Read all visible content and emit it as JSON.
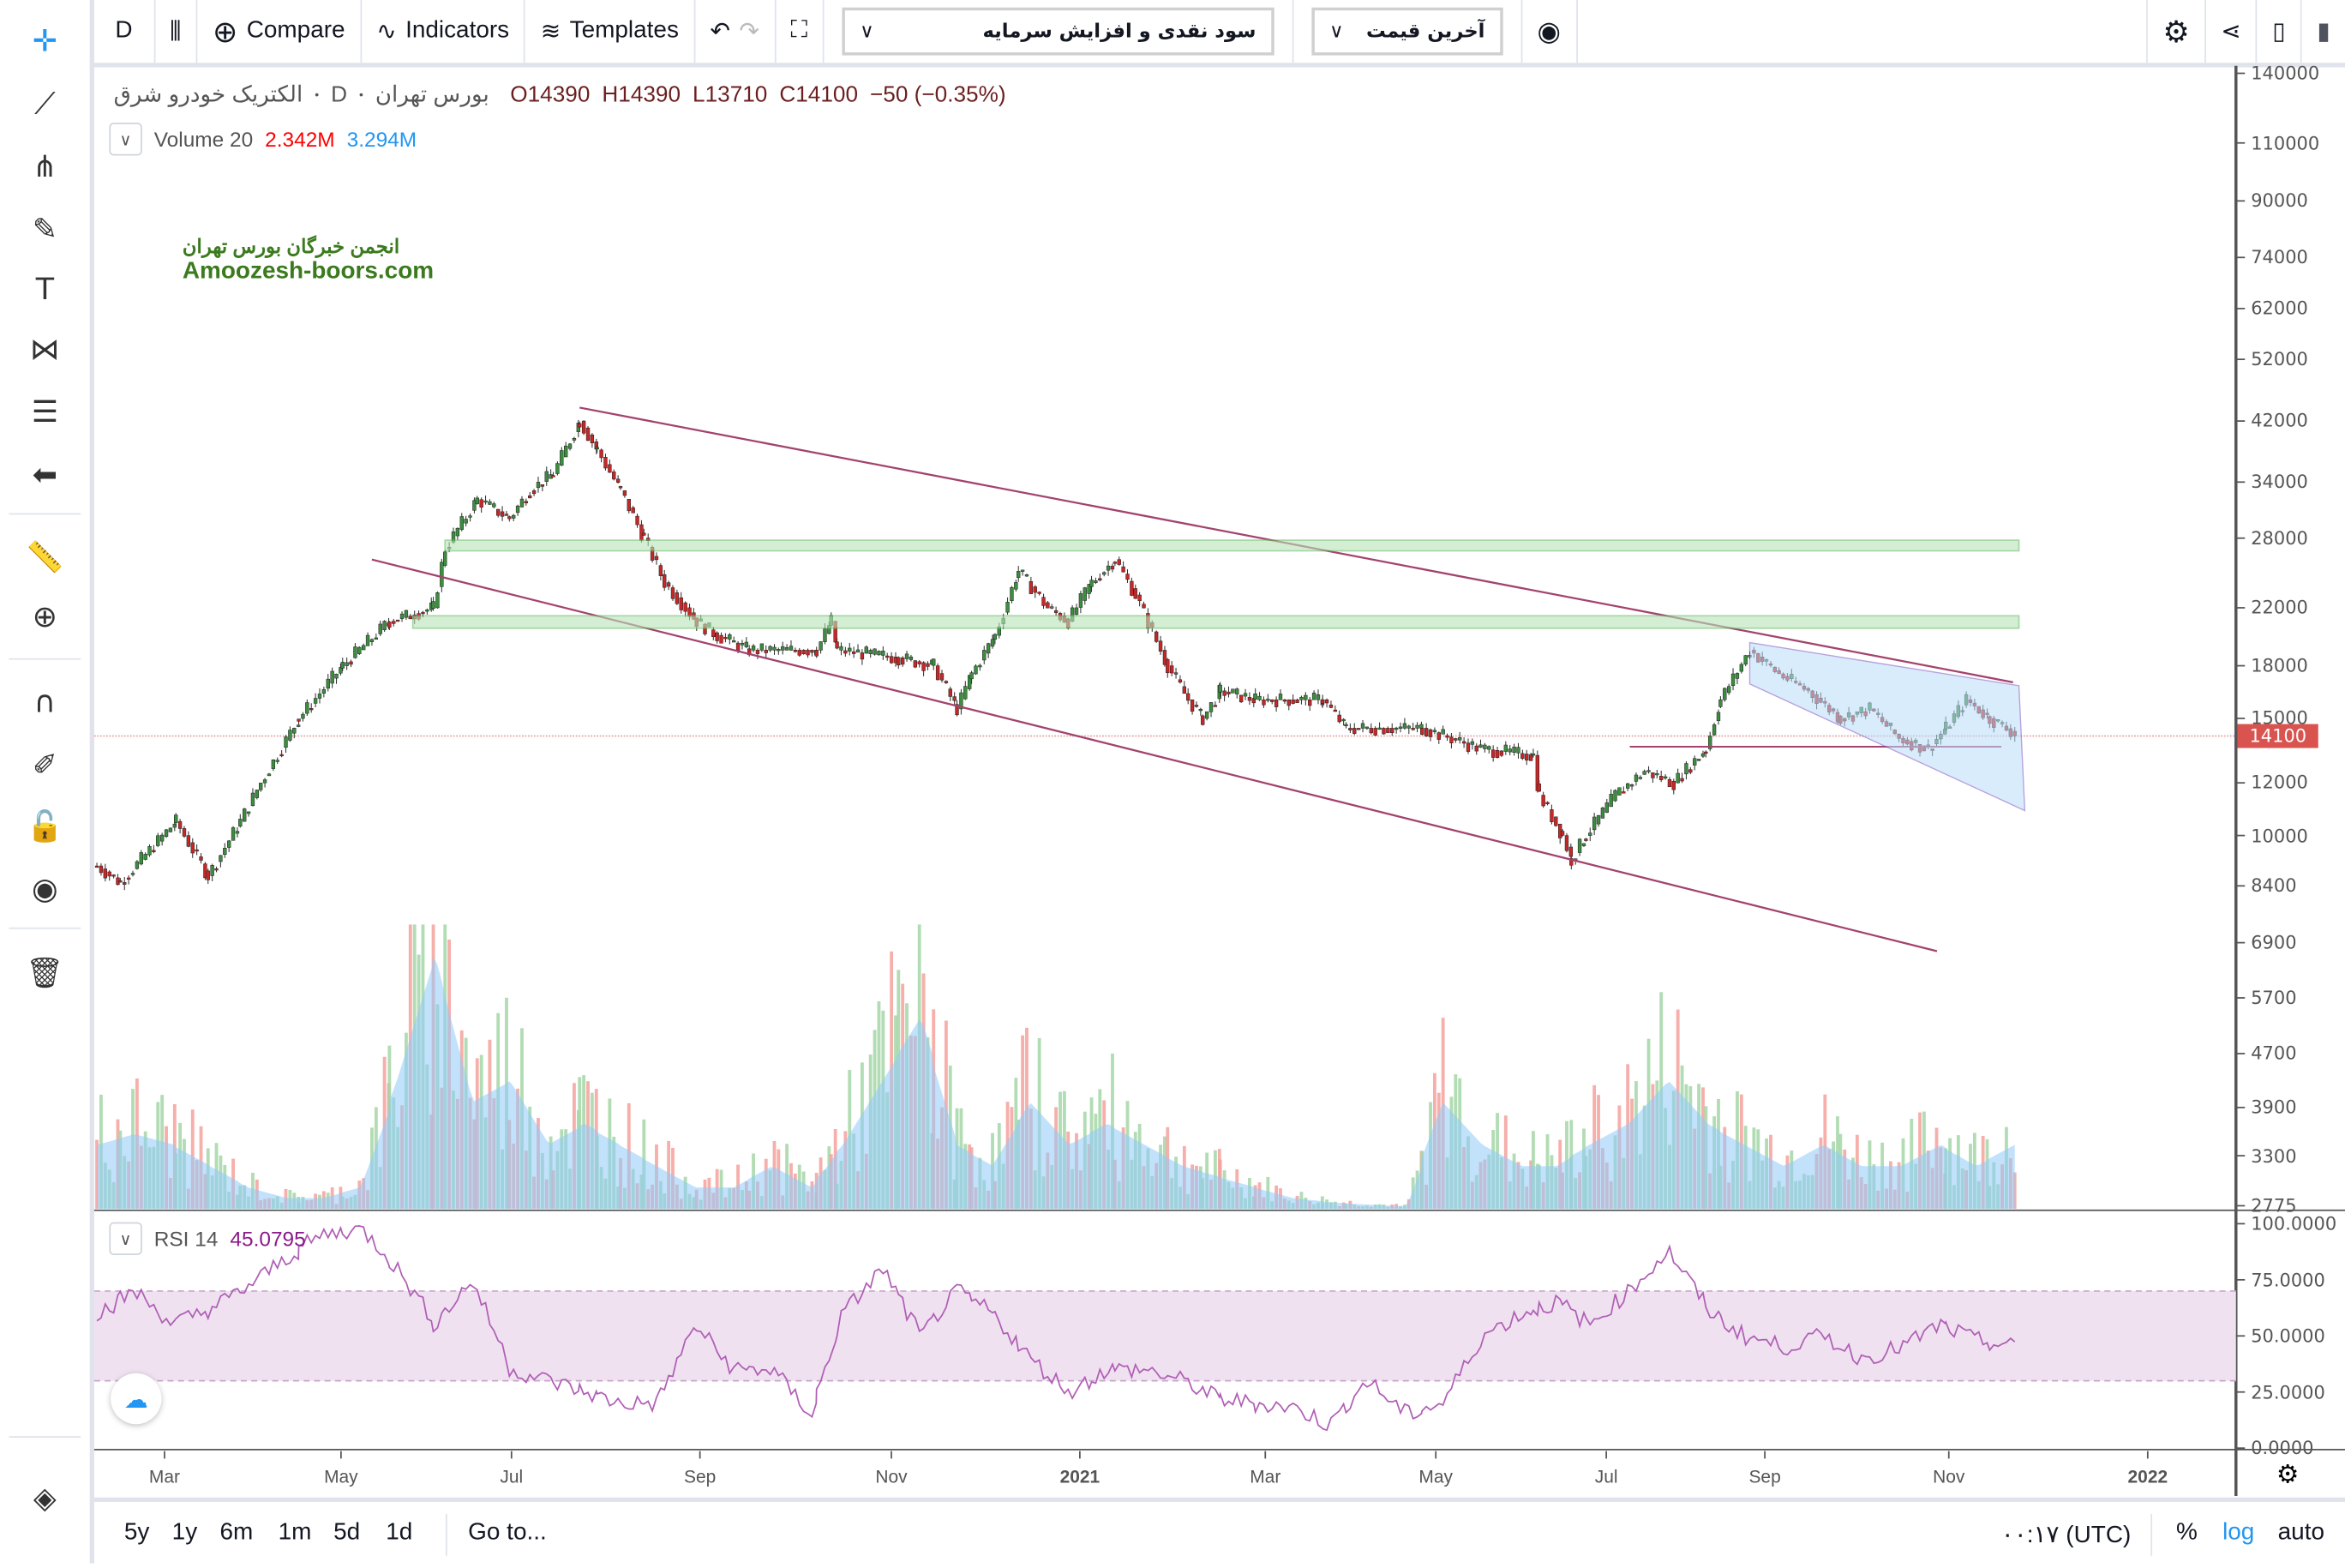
{
  "toolbar": {
    "interval": "D",
    "compare": "Compare",
    "indicators": "Indicators",
    "templates": "Templates",
    "dropdown_dividend": "سود نقدی و افزایش سرمایه",
    "dropdown_price": "آخرین قیمت"
  },
  "left_tools": [
    "crosshair-icon",
    "trendline-icon",
    "pitchfork-icon",
    "brush-icon",
    "text-icon",
    "pattern-icon",
    "fib-icon",
    "back-arrow-icon",
    "ruler-icon",
    "zoom-in-icon",
    "magnet-icon",
    "lock-pencil-icon",
    "unlock-icon",
    "eye-icon",
    "trash-icon",
    "layers-icon"
  ],
  "legend": {
    "symbol": "الکتریک خودرو شرق",
    "interval": "D",
    "exchange": "بورس تهران",
    "open": "O14390",
    "high": "H14390",
    "low": "L13710",
    "close": "C14100",
    "change": "−50 (−0.35%)"
  },
  "volume_legend": {
    "label": "Volume 20",
    "value": "2.342M",
    "ma": "3.294M"
  },
  "rsi_legend": {
    "label": "RSI 14",
    "value": "45.0795"
  },
  "watermark": {
    "line1": "انجمن خبرگان بورس تهران",
    "line2": "Amoozesh-boors.com"
  },
  "colors": {
    "up": "#3c8d40",
    "down": "#c62828",
    "volume_up": "#a5d6a7",
    "volume_down": "#f4a19b",
    "volume_ma": "#90caf9",
    "rsi": "#b05fb5",
    "trendline": "#a3436d",
    "zone": "#b9e3b9",
    "last_price": "#d9534f",
    "accent": "#2196f3"
  },
  "price_axis": {
    "ticks": [
      "140000",
      "110000",
      "90000",
      "74000",
      "62000",
      "52000",
      "42000",
      "34000",
      "28000",
      "22000",
      "18000",
      "15000",
      "12000",
      "10000",
      "8400",
      "6900",
      "5700",
      "4700",
      "3900",
      "3300",
      "2775"
    ],
    "last_price": "14100"
  },
  "rsi_axis": {
    "ticks": [
      "100.0000",
      "75.0000",
      "50.0000",
      "25.0000",
      "0.0000"
    ]
  },
  "time_axis": {
    "ticks": [
      "Mar",
      "May",
      "Jul",
      "Sep",
      "Nov",
      "2021",
      "Mar",
      "May",
      "Jul",
      "Sep",
      "Nov",
      "2022"
    ]
  },
  "bottom": {
    "ranges": [
      "5y",
      "1y",
      "6m",
      "1m",
      "5d",
      "1d"
    ],
    "goto": "Go to...",
    "timezone": "۰۰:۱۷ (UTC)",
    "percent": "%",
    "log": "log",
    "auto": "auto"
  },
  "chart_data": {
    "type": "candlestick",
    "scale": "log",
    "ylim": [
      2775,
      140000
    ],
    "xlim": [
      "2020-01-28",
      "2022-02-20"
    ],
    "price_path": [
      [
        "2020-01-31",
        9000
      ],
      [
        "2020-02-08",
        8500
      ],
      [
        "2020-02-18",
        9500
      ],
      [
        "2020-02-27",
        10500
      ],
      [
        "2020-03-09",
        8700
      ],
      [
        "2020-03-20",
        10500
      ],
      [
        "2020-03-27",
        12000
      ],
      [
        "2020-04-09",
        15000
      ],
      [
        "2020-04-24",
        18000
      ],
      [
        "2020-05-10",
        21000
      ],
      [
        "2020-05-25",
        22000
      ],
      [
        "2020-05-29",
        27000
      ],
      [
        "2020-06-09",
        32000
      ],
      [
        "2020-06-20",
        30000
      ],
      [
        "2020-06-27",
        33000
      ],
      [
        "2020-07-05",
        35000
      ],
      [
        "2020-07-14",
        42000
      ],
      [
        "2020-07-20",
        38000
      ],
      [
        "2020-07-28",
        33000
      ],
      [
        "2020-08-05",
        28000
      ],
      [
        "2020-08-12",
        24000
      ],
      [
        "2020-08-23",
        21000
      ],
      [
        "2020-08-30",
        20000
      ],
      [
        "2020-09-10",
        19000
      ],
      [
        "2020-09-20",
        19000
      ],
      [
        "2020-10-03",
        19000
      ],
      [
        "2020-10-08",
        21000
      ],
      [
        "2020-10-10",
        19000
      ],
      [
        "2020-10-31",
        18500
      ],
      [
        "2020-11-12",
        18000
      ],
      [
        "2020-11-20",
        15500
      ],
      [
        "2020-11-25",
        17500
      ],
      [
        "2020-12-03",
        20000
      ],
      [
        "2020-12-11",
        25000
      ],
      [
        "2020-12-21",
        22000
      ],
      [
        "2020-12-28",
        21000
      ],
      [
        "2021-01-05",
        24000
      ],
      [
        "2021-01-13",
        26000
      ],
      [
        "2021-01-20",
        23000
      ],
      [
        "2021-01-31",
        18000
      ],
      [
        "2021-02-07",
        16000
      ],
      [
        "2021-02-12",
        15000
      ],
      [
        "2021-02-18",
        16500
      ],
      [
        "2021-03-02",
        16000
      ],
      [
        "2021-03-25",
        16000
      ],
      [
        "2021-04-02",
        14500
      ],
      [
        "2021-04-28",
        14500
      ],
      [
        "2021-05-18",
        13500
      ],
      [
        "2021-06-05",
        13200
      ],
      [
        "2021-06-07",
        11500
      ],
      [
        "2021-06-15",
        10000
      ],
      [
        "2021-06-18",
        9200
      ],
      [
        "2021-06-23",
        10000
      ],
      [
        "2021-07-03",
        11500
      ],
      [
        "2021-07-13",
        12500
      ],
      [
        "2021-07-23",
        12000
      ],
      [
        "2021-08-03",
        13500
      ],
      [
        "2021-08-08",
        16000
      ],
      [
        "2021-08-18",
        19000
      ],
      [
        "2021-08-28",
        17500
      ],
      [
        "2021-09-07",
        16500
      ],
      [
        "2021-09-18",
        15000
      ],
      [
        "2021-09-28",
        15500
      ],
      [
        "2021-10-08",
        14000
      ],
      [
        "2021-10-18",
        13500
      ],
      [
        "2021-10-24",
        14500
      ],
      [
        "2021-10-31",
        16000
      ],
      [
        "2021-11-08",
        15000
      ],
      [
        "2021-11-18",
        14100
      ]
    ],
    "volume_m": [
      3,
      3.5,
      3,
      2,
      1,
      0.5,
      0.5,
      1,
      6,
      12,
      5,
      6,
      3,
      4,
      3,
      2,
      1,
      1,
      2,
      1,
      3,
      6,
      9,
      3,
      2,
      5,
      3,
      4,
      3,
      2,
      1.5,
      1,
      0.5,
      0.3,
      0.2,
      0.1,
      5,
      3,
      2,
      2,
      3,
      4,
      6,
      4,
      3,
      2,
      3,
      2,
      2,
      3,
      2,
      3
    ],
    "rsi": [
      60,
      70,
      55,
      62,
      72,
      85,
      95,
      98,
      80,
      55,
      75,
      35,
      30,
      25,
      20,
      20,
      55,
      35,
      35,
      15,
      60,
      80,
      50,
      70,
      60,
      40,
      25,
      35,
      35,
      30,
      22,
      20,
      18,
      10,
      30,
      15,
      20,
      50,
      60,
      65,
      55,
      70,
      88,
      62,
      50,
      45,
      50,
      40,
      45,
      55,
      48,
      45
    ],
    "rsi_band": [
      30,
      70
    ],
    "drawings": [
      {
        "type": "trendline",
        "from": [
          "2020-07-14",
          44000
        ],
        "to": [
          "2021-11-16",
          17000
        ]
      },
      {
        "type": "trendline",
        "from": [
          "2020-05-04",
          26000
        ],
        "to": [
          "2021-10-21",
          6700
        ]
      },
      {
        "type": "zone",
        "from": "2020-05-29",
        "to": "2021-11-18",
        "low": 26800,
        "high": 27800
      },
      {
        "type": "zone",
        "from": "2020-05-18",
        "to": "2021-11-18",
        "low": 20500,
        "high": 21400
      },
      {
        "type": "hline",
        "from": "2021-07-08",
        "to": "2021-11-12",
        "price": 13600
      },
      {
        "type": "channel",
        "points": [
          [
            "2021-08-18",
            19500
          ],
          [
            "2021-11-18",
            16800
          ],
          [
            "2021-11-20",
            10900
          ],
          [
            "2021-08-18",
            16900
          ]
        ]
      }
    ]
  }
}
